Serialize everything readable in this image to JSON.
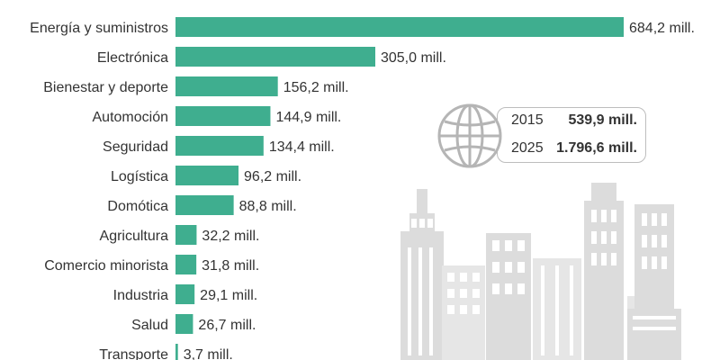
{
  "colors": {
    "bar": "#3fae8f",
    "building": "#dcdcdc",
    "window": "#bdbdbd"
  },
  "chart_data": {
    "type": "bar",
    "orientation": "horizontal",
    "categories": [
      "Energía y suministros",
      "Electrónica",
      "Bienestar y deporte",
      "Automoción",
      "Seguridad",
      "Logística",
      "Domótica",
      "Agricultura",
      "Comercio minorista",
      "Industria",
      "Salud",
      "Transporte"
    ],
    "values": [
      684.2,
      305.0,
      156.2,
      144.9,
      134.4,
      96.2,
      88.8,
      32.2,
      31.8,
      29.1,
      26.7,
      3.7
    ],
    "value_labels": [
      "684,2 mill.",
      "305,0 mill.",
      "156,2 mill.",
      "144,9 mill.",
      "134,4 mill.",
      "96,2 mill.",
      "88,8 mill.",
      "32,2 mill.",
      "31,8 mill.",
      "29,1 mill.",
      "26,7 mill.",
      "3,7 mill."
    ],
    "xlim": [
      0,
      684.2
    ],
    "grid": false
  },
  "totals": {
    "icon": "globe-icon",
    "rows": [
      {
        "year": "2015",
        "value": "539,9 mill."
      },
      {
        "year": "2025",
        "value": "1.796,6 mill."
      }
    ]
  },
  "illustration": {
    "icon": "city-skyline-illustration"
  }
}
